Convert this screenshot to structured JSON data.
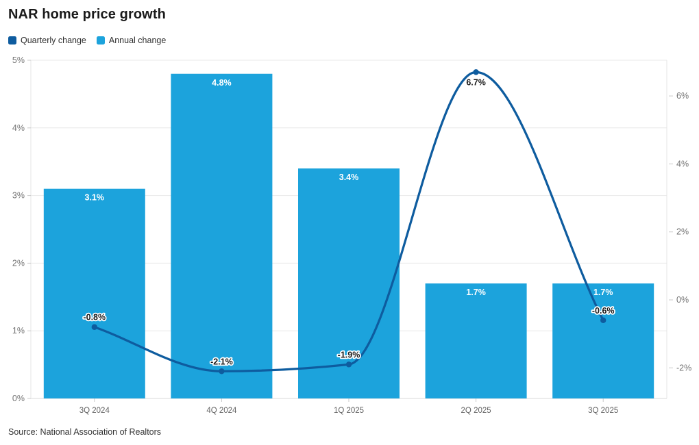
{
  "source": "Source: National Association of Realtors",
  "colors": {
    "bar": "#1ca3dc",
    "line": "#0e5c9f",
    "grid": "#e8e8e8",
    "baseline": "#d8d8d8",
    "boundary": "#e5e5e5",
    "tick": "#c9c9c9",
    "title_text": "#1a1a1a",
    "axis_text": "#737373"
  },
  "chart_data": {
    "type": "combo",
    "title": "NAR home price growth",
    "categories": [
      "3Q 2024",
      "4Q 2024",
      "1Q 2025",
      "2Q 2025",
      "3Q 2025"
    ],
    "series": [
      {
        "name": "Quarterly change",
        "type": "line",
        "axis": "right",
        "color": "#0e5c9f",
        "values": [
          -0.8,
          -2.1,
          -1.9,
          6.7,
          -0.6
        ],
        "labels": [
          "-0.8%",
          "-2.1%",
          "-1.9%",
          "6.7%",
          "-0.6%"
        ]
      },
      {
        "name": "Annual change",
        "type": "bar",
        "axis": "left",
        "color": "#1ca3dc",
        "values": [
          3.1,
          4.8,
          3.4,
          1.7,
          1.7
        ],
        "labels": [
          "3.1%",
          "4.8%",
          "3.4%",
          "1.7%",
          "1.7%"
        ]
      }
    ],
    "left_axis": {
      "min": 0,
      "max": 5,
      "ticks": [
        0,
        1,
        2,
        3,
        4,
        5
      ],
      "tick_labels": [
        "0%",
        "1%",
        "2%",
        "3%",
        "4%",
        "5%"
      ]
    },
    "right_axis": {
      "min": -2.9,
      "max": 7.05,
      "ticks": [
        -2,
        0,
        2,
        4,
        6
      ],
      "tick_labels": [
        "-2%",
        "0%",
        "2%",
        "4%",
        "6%"
      ]
    },
    "grid": "horizontal-left-ticks-only",
    "legend_position": "top-left"
  }
}
